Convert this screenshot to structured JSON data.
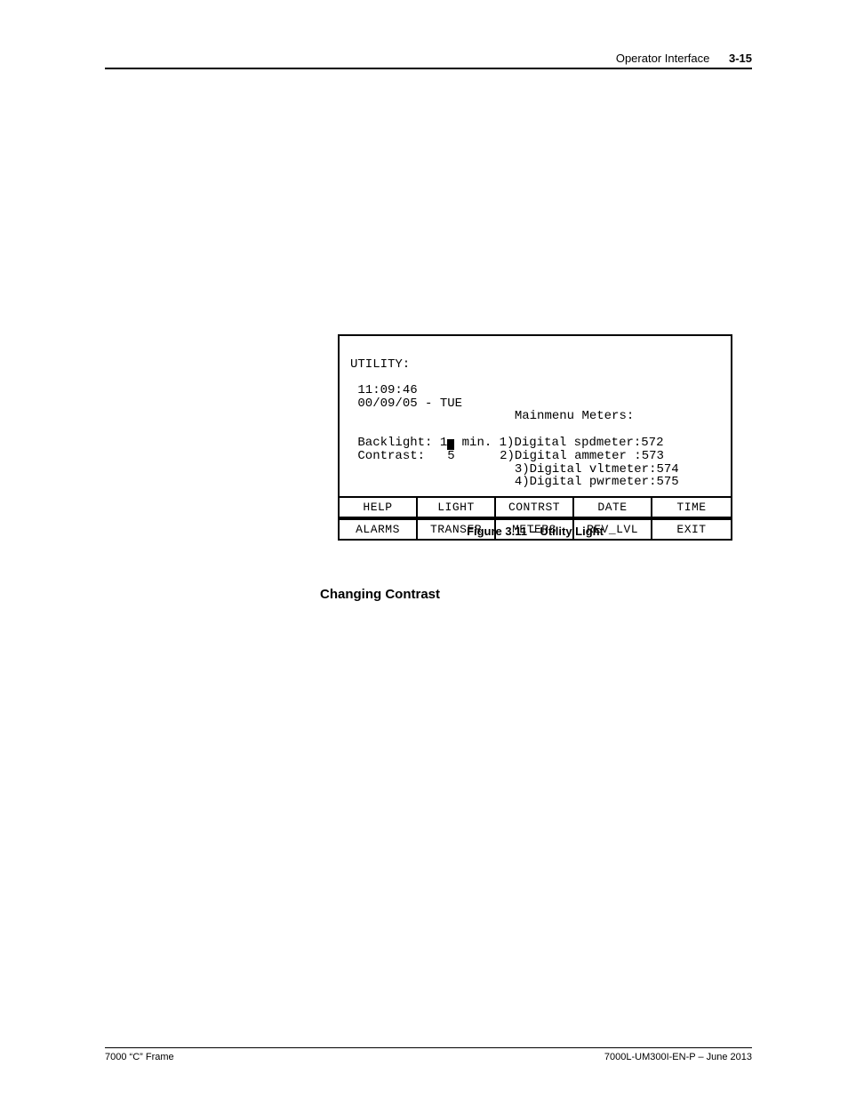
{
  "header": {
    "section": "Operator Interface",
    "page": "3-15"
  },
  "screen": {
    "title": "UTILITY:",
    "time": "11:09:46",
    "date": "00/09/05 - TUE",
    "meters_title": "Mainmenu Meters:",
    "backlight_label": "Backlight:",
    "backlight_val_prefix": "1",
    "backlight_val_suffix": " min.",
    "contrast_label": "Contrast:",
    "contrast_val": "  5",
    "meters": [
      "1)Digital spdmeter:572",
      "2)Digital ammeter :573",
      "3)Digital vltmeter:574",
      "4)Digital pwrmeter:575"
    ],
    "buttons_row1": [
      "HELP",
      "LIGHT",
      "CONTRST",
      "DATE",
      "TIME"
    ],
    "buttons_row2": [
      "ALARMS",
      "TRANSFR",
      "METERS",
      "REV_LVL",
      "EXIT"
    ]
  },
  "caption": "Figure 3.11 – Utility Light",
  "section_heading": "Changing Contrast",
  "footer": {
    "left": "7000 “C” Frame",
    "right": "7000L-UM300I-EN-P – June 2013"
  }
}
